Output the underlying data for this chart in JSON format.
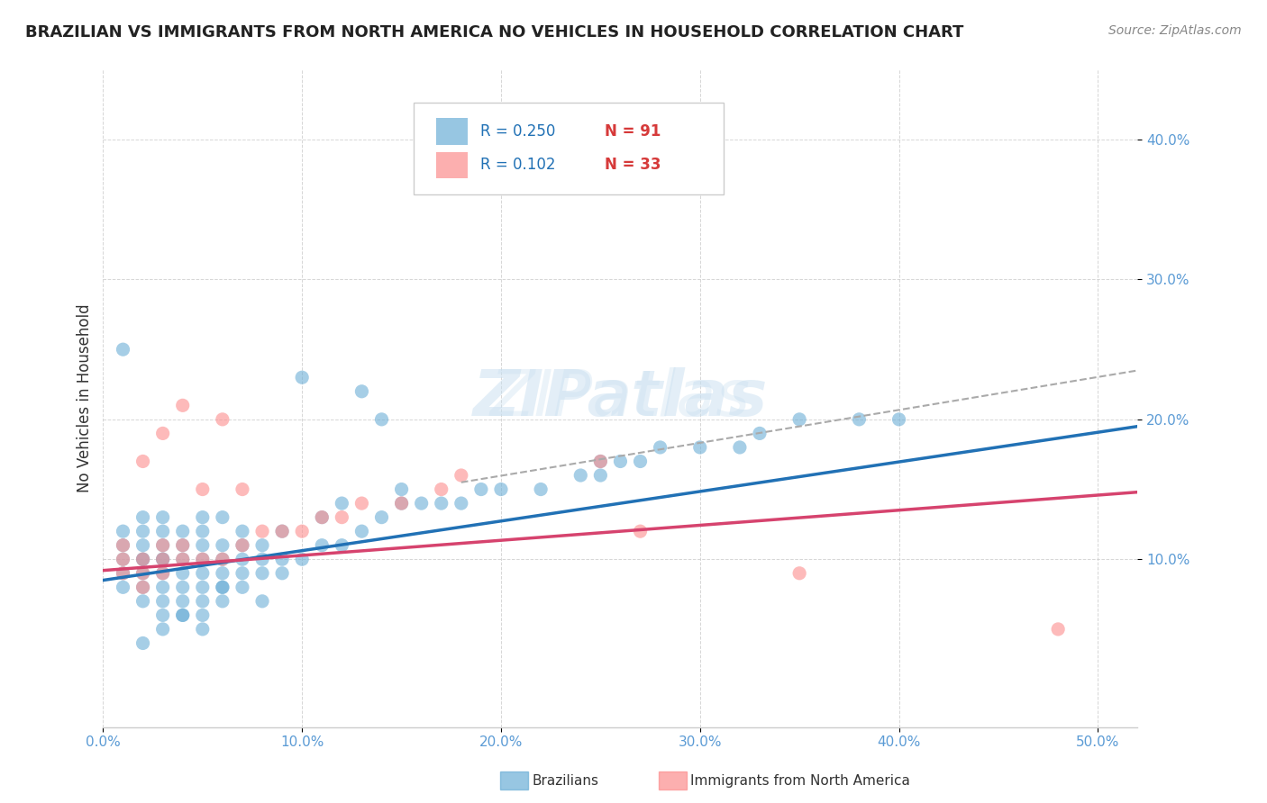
{
  "title": "BRAZILIAN VS IMMIGRANTS FROM NORTH AMERICA NO VEHICLES IN HOUSEHOLD CORRELATION CHART",
  "source": "Source: ZipAtlas.com",
  "xlabel_ticks": [
    "0.0%",
    "10.0%",
    "20.0%",
    "30.0%",
    "40.0%",
    "50.0%"
  ],
  "xlabel_vals": [
    0.0,
    0.1,
    0.2,
    0.3,
    0.4,
    0.5
  ],
  "ylabel": "No Vehicles in Household",
  "ylim": [
    0.0,
    0.45
  ],
  "xlim": [
    0.0,
    0.52
  ],
  "ytick_vals": [
    0.1,
    0.2,
    0.3,
    0.4
  ],
  "ytick_labels": [
    "10.0%",
    "20.0%",
    "30.0%",
    "40.0%"
  ],
  "blue_color": "#6baed6",
  "pink_color": "#fc8d8d",
  "blue_line_color": "#2171b5",
  "pink_line_color": "#d6436e",
  "dashed_line_color": "#aaaaaa",
  "watermark": "ZIPatlas",
  "legend_r1": "R = 0.250",
  "legend_n1": "N = 91",
  "legend_r2": "R = 0.102",
  "legend_n2": "N = 33",
  "blue_scatter_x": [
    0.01,
    0.01,
    0.01,
    0.01,
    0.01,
    0.02,
    0.02,
    0.02,
    0.02,
    0.02,
    0.02,
    0.02,
    0.02,
    0.03,
    0.03,
    0.03,
    0.03,
    0.03,
    0.03,
    0.03,
    0.03,
    0.03,
    0.04,
    0.04,
    0.04,
    0.04,
    0.04,
    0.04,
    0.04,
    0.05,
    0.05,
    0.05,
    0.05,
    0.05,
    0.05,
    0.05,
    0.05,
    0.06,
    0.06,
    0.06,
    0.06,
    0.06,
    0.06,
    0.07,
    0.07,
    0.07,
    0.07,
    0.07,
    0.08,
    0.08,
    0.08,
    0.08,
    0.09,
    0.09,
    0.09,
    0.1,
    0.1,
    0.11,
    0.11,
    0.12,
    0.12,
    0.13,
    0.13,
    0.14,
    0.14,
    0.15,
    0.15,
    0.16,
    0.17,
    0.18,
    0.19,
    0.2,
    0.22,
    0.24,
    0.25,
    0.25,
    0.26,
    0.27,
    0.28,
    0.3,
    0.32,
    0.33,
    0.35,
    0.38,
    0.4,
    0.01,
    0.02,
    0.03,
    0.04,
    0.05,
    0.06
  ],
  "blue_scatter_y": [
    0.08,
    0.09,
    0.1,
    0.11,
    0.12,
    0.07,
    0.08,
    0.09,
    0.1,
    0.1,
    0.11,
    0.12,
    0.13,
    0.06,
    0.07,
    0.08,
    0.09,
    0.1,
    0.1,
    0.11,
    0.12,
    0.13,
    0.06,
    0.07,
    0.08,
    0.09,
    0.1,
    0.11,
    0.12,
    0.06,
    0.07,
    0.08,
    0.09,
    0.1,
    0.11,
    0.12,
    0.13,
    0.07,
    0.08,
    0.09,
    0.1,
    0.11,
    0.13,
    0.08,
    0.09,
    0.1,
    0.11,
    0.12,
    0.07,
    0.09,
    0.1,
    0.11,
    0.09,
    0.1,
    0.12,
    0.1,
    0.23,
    0.11,
    0.13,
    0.11,
    0.14,
    0.12,
    0.22,
    0.13,
    0.2,
    0.14,
    0.15,
    0.14,
    0.14,
    0.14,
    0.15,
    0.15,
    0.15,
    0.16,
    0.16,
    0.17,
    0.17,
    0.17,
    0.18,
    0.18,
    0.18,
    0.19,
    0.2,
    0.2,
    0.2,
    0.25,
    0.04,
    0.05,
    0.06,
    0.05,
    0.08
  ],
  "pink_scatter_x": [
    0.01,
    0.01,
    0.01,
    0.02,
    0.02,
    0.02,
    0.02,
    0.03,
    0.03,
    0.03,
    0.03,
    0.04,
    0.04,
    0.04,
    0.05,
    0.05,
    0.06,
    0.06,
    0.07,
    0.07,
    0.08,
    0.09,
    0.1,
    0.11,
    0.12,
    0.13,
    0.15,
    0.17,
    0.18,
    0.25,
    0.27,
    0.35,
    0.48
  ],
  "pink_scatter_y": [
    0.09,
    0.1,
    0.11,
    0.08,
    0.09,
    0.1,
    0.17,
    0.09,
    0.1,
    0.11,
    0.19,
    0.1,
    0.11,
    0.21,
    0.1,
    0.15,
    0.1,
    0.2,
    0.11,
    0.15,
    0.12,
    0.12,
    0.12,
    0.13,
    0.13,
    0.14,
    0.14,
    0.15,
    0.16,
    0.17,
    0.12,
    0.09,
    0.05
  ],
  "blue_trend_x": [
    0.0,
    0.52
  ],
  "blue_trend_y_start": 0.085,
  "blue_trend_y_end": 0.195,
  "pink_trend_x": [
    0.0,
    0.52
  ],
  "pink_trend_y_start": 0.092,
  "pink_trend_y_end": 0.148,
  "dashed_trend_x": [
    0.18,
    0.52
  ],
  "dashed_trend_y_start": 0.155,
  "dashed_trend_y_end": 0.235,
  "bg_color": "#ffffff",
  "grid_color": "#cccccc"
}
